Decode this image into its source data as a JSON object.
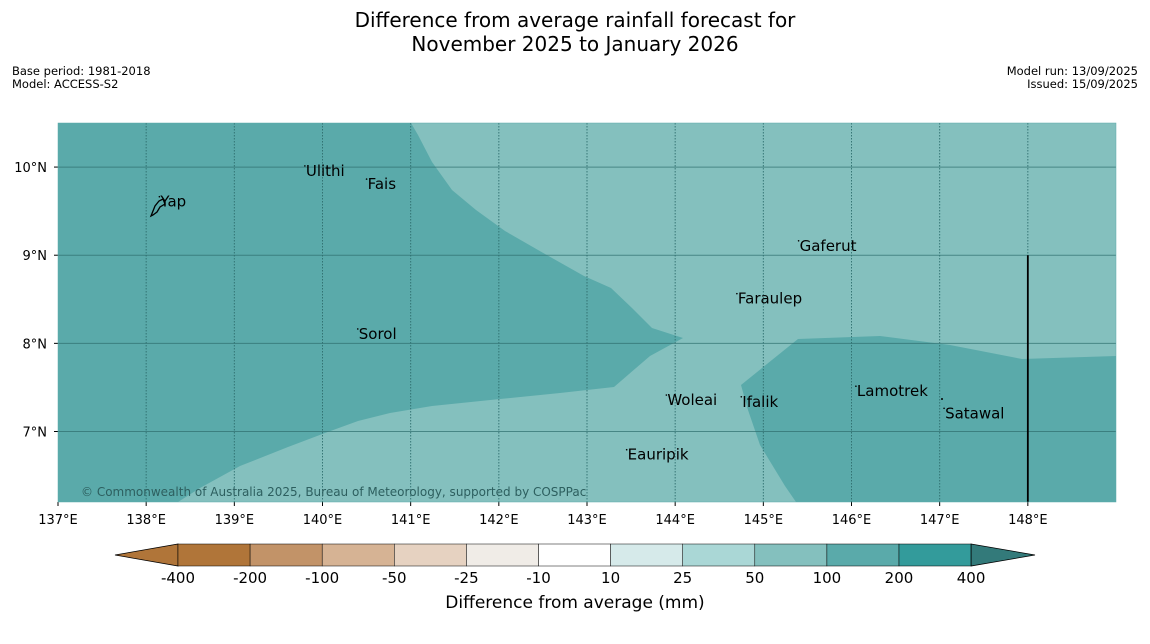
{
  "header": {
    "title_line1": "Difference from average rainfall forecast for",
    "title_line2": "November 2025 to January 2026",
    "base_period": "Base period: 1981-2018",
    "model": "Model: ACCESS-S2",
    "model_run": "Model run: 13/09/2025",
    "issued": "Issued: 15/09/2025"
  },
  "map": {
    "lon_ticks": [
      137,
      138,
      139,
      140,
      141,
      142,
      143,
      144,
      145,
      146,
      147,
      148
    ],
    "lon_labels": [
      "137°E",
      "138°E",
      "139°E",
      "140°E",
      "141°E",
      "142°E",
      "143°E",
      "144°E",
      "145°E",
      "146°E",
      "147°E",
      "148°E"
    ],
    "lat_ticks": [
      10,
      9,
      8,
      7
    ],
    "lat_labels": [
      "10°N",
      "9°N",
      "8°N",
      "7°N"
    ],
    "lon_range": [
      137,
      149
    ],
    "lat_range": [
      6.2,
      10.5
    ],
    "colors": {
      "band_200": "#5aaaaa",
      "band_100": "#84c0be",
      "grid": "#2e6e6e"
    },
    "places": [
      {
        "name": "Ulithi",
        "lon": 139.8,
        "lat": 9.9
      },
      {
        "name": "Fais",
        "lon": 140.5,
        "lat": 9.75
      },
      {
        "name": "Yap",
        "lon": 138.15,
        "lat": 9.55
      },
      {
        "name": "Gaferut",
        "lon": 145.4,
        "lat": 9.05
      },
      {
        "name": "Faraulep",
        "lon": 144.7,
        "lat": 8.45
      },
      {
        "name": "Sorol",
        "lon": 140.4,
        "lat": 8.05
      },
      {
        "name": "Lamotrek",
        "lon": 146.05,
        "lat": 7.4
      },
      {
        "name": "Woleai",
        "lon": 143.9,
        "lat": 7.3
      },
      {
        "name": "Ifalik",
        "lon": 144.75,
        "lat": 7.28
      },
      {
        "name": "Satawal",
        "lon": 147.05,
        "lat": 7.15
      },
      {
        "name": "Eauripik",
        "lon": 143.45,
        "lat": 6.68
      }
    ],
    "copyright": "© Commonwealth of Australia 2025, Bureau of Meteorology, supported by COSPPac"
  },
  "colorbar": {
    "labels": [
      "-400",
      "-200",
      "-100",
      "-50",
      "-25",
      "-10",
      "10",
      "25",
      "50",
      "100",
      "200",
      "400"
    ],
    "colors": [
      "#b07539",
      "#b07539",
      "#c29368",
      "#d6b394",
      "#e6d2c1",
      "#f0ece7",
      "#ffffff",
      "#d6eaea",
      "#aad7d6",
      "#84c0be",
      "#5aaaaa",
      "#339b9b",
      "#337a7a"
    ],
    "title": "Difference from average (mm)"
  }
}
